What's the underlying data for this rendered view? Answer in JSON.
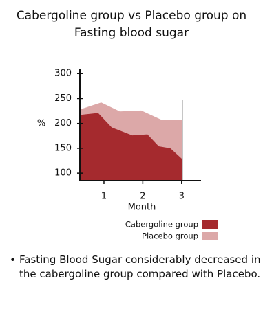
{
  "chart_data": {
    "type": "area",
    "title_lines": [
      "Cabergoline group vs Placebo group on",
      "Fasting blood sugar"
    ],
    "x_label": "Month",
    "y_label": "%",
    "series": [
      {
        "name": "Cabergoline group",
        "color": "#a52a2e",
        "x": [
          0.38,
          0.85,
          1.2,
          1.73,
          2.12,
          2.41,
          2.71,
          3.02
        ],
        "values": [
          217,
          221,
          192,
          176,
          178,
          154,
          150,
          128
        ]
      },
      {
        "name": "Placebo group",
        "color": "#dca8a8",
        "x": [
          0.38,
          0.93,
          1.41,
          1.96,
          2.49,
          3.02
        ],
        "values": [
          228,
          242,
          224,
          226,
          207,
          207
        ]
      }
    ],
    "xlim": [
      0.38,
      3.5
    ],
    "xticks": [
      1,
      2,
      3
    ],
    "ylim": [
      85,
      310
    ],
    "yticks": [
      100,
      150,
      200,
      250,
      300
    ]
  },
  "bullets": [
    "Fasting Blood Sugar considerably decreased in the cabergoline group compared with Placebo."
  ]
}
